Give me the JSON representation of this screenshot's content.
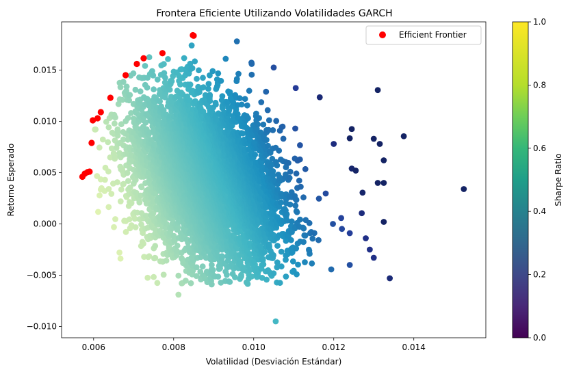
{
  "chart_data": {
    "type": "scatter",
    "title": "Frontera Eficiente Utilizando Volatilidades GARCH",
    "xlabel": "Volatilidad (Desviación Estándar)",
    "ylabel": "Retorno Esperado",
    "xlim": [
      0.0052,
      0.0158
    ],
    "ylim": [
      -0.0111,
      0.0197
    ],
    "xticks": [
      {
        "value": 0.006,
        "label": "0.006"
      },
      {
        "value": 0.008,
        "label": "0.008"
      },
      {
        "value": 0.01,
        "label": "0.010"
      },
      {
        "value": 0.012,
        "label": "0.012"
      },
      {
        "value": 0.014,
        "label": "0.014"
      }
    ],
    "yticks": [
      {
        "value": -0.01,
        "label": "−0.010"
      },
      {
        "value": -0.005,
        "label": "−0.005"
      },
      {
        "value": 0.0,
        "label": "0.000"
      },
      {
        "value": 0.005,
        "label": "0.005"
      },
      {
        "value": 0.01,
        "label": "0.010"
      },
      {
        "value": 0.015,
        "label": "0.015"
      }
    ],
    "grid": false,
    "legend": {
      "position": "top-right",
      "entries": [
        {
          "name": "Efficient Frontier",
          "color": "#ff0000"
        }
      ]
    },
    "colorbar": {
      "label": "Sharpe Ratio",
      "colormap": "viridis",
      "range": [
        0,
        1
      ],
      "ticks": [
        {
          "value": 0.0,
          "label": "0.0"
        },
        {
          "value": 0.2,
          "label": "0.2"
        },
        {
          "value": 0.4,
          "label": "0.4"
        },
        {
          "value": 0.6,
          "label": "0.6"
        },
        {
          "value": 0.8,
          "label": "0.8"
        },
        {
          "value": 1.0,
          "label": "1.0"
        }
      ]
    },
    "series": [
      {
        "name": "Efficient Frontier",
        "color": "#ff0000",
        "points": [
          {
            "x": 0.00572,
            "y": 0.0046
          },
          {
            "x": 0.00578,
            "y": 0.0049
          },
          {
            "x": 0.00585,
            "y": 0.00505
          },
          {
            "x": 0.0059,
            "y": 0.0051
          },
          {
            "x": 0.00595,
            "y": 0.0079
          },
          {
            "x": 0.00598,
            "y": 0.0101
          },
          {
            "x": 0.0061,
            "y": 0.0103
          },
          {
            "x": 0.00618,
            "y": 0.0109
          },
          {
            "x": 0.00642,
            "y": 0.0123
          },
          {
            "x": 0.0068,
            "y": 0.0145
          },
          {
            "x": 0.00708,
            "y": 0.0156
          },
          {
            "x": 0.00725,
            "y": 0.01615
          },
          {
            "x": 0.00772,
            "y": 0.01665
          },
          {
            "x": 0.00848,
            "y": 0.0184
          },
          {
            "x": 0.0085,
            "y": 0.01835
          }
        ]
      },
      {
        "name": "",
        "outliers": [
          {
            "x": 0.00958,
            "y": 0.0178
          },
          {
            "x": 0.00845,
            "y": 0.0174
          },
          {
            "x": 0.0093,
            "y": 0.0161
          },
          {
            "x": 0.00995,
            "y": 0.0156
          },
          {
            "x": 0.00995,
            "y": 0.01455
          },
          {
            "x": 0.0105,
            "y": 0.01525
          },
          {
            "x": 0.0131,
            "y": 0.01305
          },
          {
            "x": 0.01375,
            "y": 0.00855
          },
          {
            "x": 0.01525,
            "y": 0.0034
          },
          {
            "x": 0.0134,
            "y": -0.0053
          },
          {
            "x": 0.01055,
            "y": -0.0095
          },
          {
            "x": 0.00812,
            "y": -0.0069
          },
          {
            "x": 0.01165,
            "y": 0.01235
          },
          {
            "x": 0.01105,
            "y": 0.01325
          },
          {
            "x": 0.013,
            "y": 0.0083
          },
          {
            "x": 0.01315,
            "y": 0.0078
          },
          {
            "x": 0.01325,
            "y": 0.0062
          },
          {
            "x": 0.0131,
            "y": 0.004
          },
          {
            "x": 0.01325,
            "y": 0.004
          },
          {
            "x": 0.01325,
            "y": 0.0002
          },
          {
            "x": 0.0128,
            "y": -0.0014
          },
          {
            "x": 0.0129,
            "y": -0.0025
          },
          {
            "x": 0.013,
            "y": -0.0033
          },
          {
            "x": 0.0124,
            "y": -0.004
          },
          {
            "x": 0.01245,
            "y": 0.00925
          },
          {
            "x": 0.0124,
            "y": 0.00835
          },
          {
            "x": 0.01272,
            "y": 0.00305
          },
          {
            "x": 0.0127,
            "y": 0.00105
          },
          {
            "x": 0.01245,
            "y": 0.0054
          },
          {
            "x": 0.01255,
            "y": 0.0052
          },
          {
            "x": 0.0124,
            "y": -0.0009
          },
          {
            "x": 0.01198,
            "y": 0.0
          },
          {
            "x": 0.012,
            "y": 0.0078
          },
          {
            "x": 0.00985,
            "y": -0.00585
          },
          {
            "x": 0.00895,
            "y": -0.0059
          },
          {
            "x": 0.00735,
            "y": -0.00525
          },
          {
            "x": 0.00775,
            "y": -0.00495
          }
        ]
      }
    ]
  }
}
